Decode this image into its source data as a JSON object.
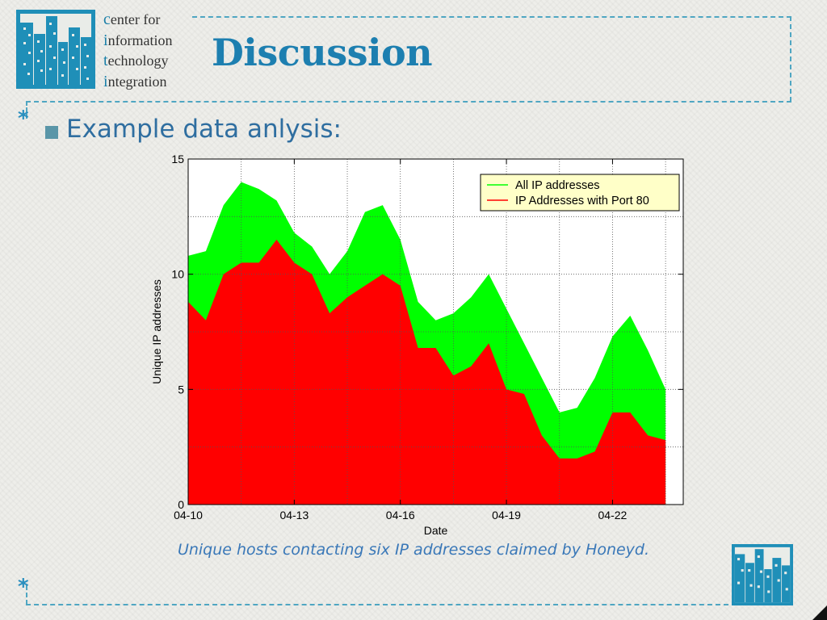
{
  "header": {
    "org_lines": [
      {
        "initial": "c",
        "rest": "enter for"
      },
      {
        "initial": "i",
        "rest": "nformation"
      },
      {
        "initial": "t",
        "rest": "echnology"
      },
      {
        "initial": "i",
        "rest": "ntegration"
      }
    ],
    "title": "Discussion"
  },
  "bullet": {
    "text": "Example data anlysis:"
  },
  "caption": "Unique hosts contacting six IP addresses claimed by Honeyd.",
  "colors": {
    "accent": "#1d7fb0",
    "series_all": "#00ff00",
    "series_port80": "#ff0000"
  },
  "chart_data": {
    "type": "area",
    "xlabel": "Date",
    "ylabel": "Unique IP addresses",
    "x": [
      "04-10",
      "04-10.5",
      "04-11",
      "04-11.5",
      "04-12",
      "04-12.5",
      "04-13",
      "04-13.5",
      "04-14",
      "04-14.5",
      "04-15",
      "04-15.5",
      "04-16",
      "04-16.5",
      "04-17",
      "04-17.5",
      "04-18",
      "04-18.5",
      "04-19",
      "04-19.5",
      "04-20",
      "04-20.5",
      "04-21",
      "04-21.5",
      "04-22",
      "04-22.5",
      "04-23",
      "04-23.5"
    ],
    "x_ticks": [
      "04-10",
      "04-13",
      "04-16",
      "04-19",
      "04-22"
    ],
    "x_range": [
      "04-10",
      "04-24"
    ],
    "ylim": [
      0,
      15
    ],
    "y_ticks": [
      0,
      5,
      10,
      15
    ],
    "grid": true,
    "legend_position": "top-right",
    "series": [
      {
        "name": "All IP addresses",
        "color": "#00ff00",
        "values": [
          10.8,
          11,
          13,
          14,
          13.7,
          13.2,
          11.8,
          11.2,
          10,
          11,
          12.7,
          13,
          11.5,
          8.8,
          8,
          8.3,
          9,
          10,
          8.5,
          7,
          5.5,
          4,
          4.2,
          5.5,
          7.3,
          8.2,
          6.7,
          5
        ]
      },
      {
        "name": "IP Addresses with Port 80",
        "color": "#ff0000",
        "values": [
          8.8,
          8,
          10,
          10.5,
          10.5,
          11.5,
          10.5,
          10,
          8.3,
          9,
          9.5,
          10,
          9.5,
          6.8,
          6.8,
          5.6,
          6,
          7,
          5,
          4.8,
          3,
          2,
          2,
          2.3,
          4,
          4,
          3,
          2.8
        ]
      }
    ]
  }
}
